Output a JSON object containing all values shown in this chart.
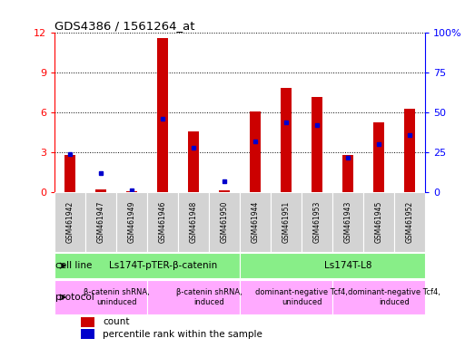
{
  "title": "GDS4386 / 1561264_at",
  "samples": [
    "GSM461942",
    "GSM461947",
    "GSM461949",
    "GSM461946",
    "GSM461948",
    "GSM461950",
    "GSM461944",
    "GSM461951",
    "GSM461953",
    "GSM461943",
    "GSM461945",
    "GSM461952"
  ],
  "count_values": [
    2.8,
    0.2,
    0.05,
    11.6,
    4.6,
    0.15,
    6.1,
    7.9,
    7.2,
    2.8,
    5.3,
    6.3
  ],
  "percentile_values": [
    24,
    12,
    1,
    46,
    28,
    7,
    32,
    44,
    42,
    22,
    30,
    36
  ],
  "ylim_left": [
    0,
    12
  ],
  "ylim_right": [
    0,
    100
  ],
  "yticks_left": [
    0,
    3,
    6,
    9,
    12
  ],
  "yticks_right_vals": [
    0,
    25,
    50,
    75,
    100
  ],
  "yticks_right_labels": [
    "0",
    "25",
    "50",
    "75",
    "100%"
  ],
  "bar_color": "#cc0000",
  "dot_color": "#0000cc",
  "cell_line_color": "#88ee88",
  "protocol_color": "#ffaaff",
  "sample_box_color": "#d3d3d3",
  "cell_line_groups": [
    {
      "label": "Ls174T-pTER-β-catenin",
      "start": 0,
      "end": 6
    },
    {
      "label": "Ls174T-L8",
      "start": 6,
      "end": 12
    }
  ],
  "protocol_groups": [
    {
      "label": "β-catenin shRNA,\nuninduced",
      "start": 0,
      "end": 3
    },
    {
      "label": "β-catenin shRNA,\ninduced",
      "start": 3,
      "end": 6
    },
    {
      "label": "dominant-negative Tcf4,\nuninduced",
      "start": 6,
      "end": 9
    },
    {
      "label": "dominant-negative Tcf4,\ninduced",
      "start": 9,
      "end": 12
    }
  ],
  "legend_count_label": "count",
  "legend_pct_label": "percentile rank within the sample",
  "cell_line_label": "cell line",
  "protocol_label": "protocol",
  "bar_width": 0.35
}
